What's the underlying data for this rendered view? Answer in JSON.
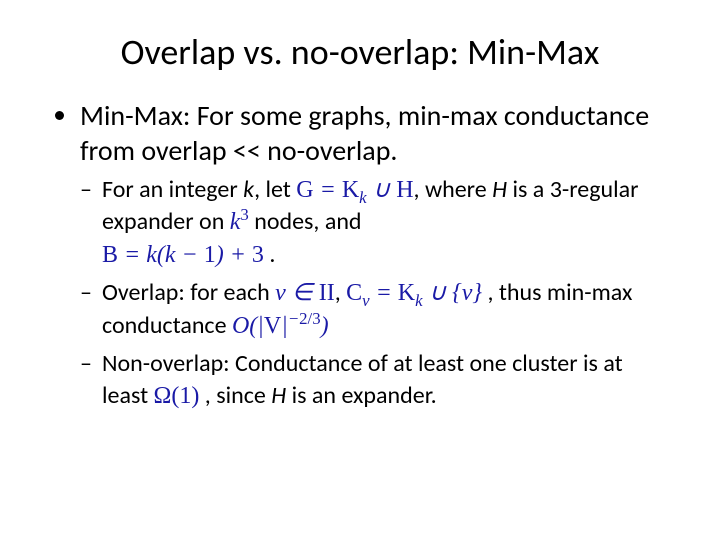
{
  "colors": {
    "text": "#000000",
    "math": "#1a1aa6",
    "background": "#ffffff"
  },
  "title": "Overlap vs. no-overlap: Min-Max",
  "bullet1": {
    "text": "Min-Max: For some graphs, min-max conductance from overlap << no-overlap."
  },
  "sub1": {
    "prefix": "For an integer ",
    "k": "k",
    "let": ", let   ",
    "eq1": "G = K_k ∪ H",
    "where": ", where ",
    "H": "H",
    "isa": " is a 3-regular expander on   ",
    "k3": "k^3",
    "nodesand": "  nodes, and",
    "eq2": "B = k(k − 1) + 3",
    "period": " ."
  },
  "sub2": {
    "overlap": "Overlap: for each ",
    "vinII": "v ∈ II",
    "comma1": ", ",
    "Cv": "C_v = K_k ∪ {v}",
    "tail": " , thus min-max conductance ",
    "order": "O(|V|^{-2/3})"
  },
  "sub3": {
    "lead": "Non-overlap: Conductance of at least one cluster is at least ",
    "omega": "Ω(1)",
    "since": " , since ",
    "H": "H",
    "tail": " is an expander."
  }
}
